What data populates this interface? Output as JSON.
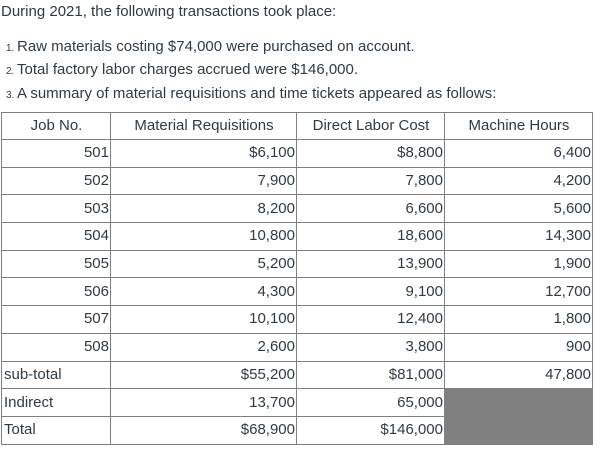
{
  "intro": {
    "text": "During 2021, the following transactions took place:"
  },
  "list": [
    {
      "number": "1.",
      "text": "Raw materials costing $74,000 were purchased on account."
    },
    {
      "number": "2.",
      "text": "Total factory labor charges accrued were $146,000."
    },
    {
      "number": "3.",
      "text": "A summary of material requisitions and time tickets appeared as follows:"
    }
  ],
  "table": {
    "headers": [
      "Job No.",
      "Material Requisitions",
      "Direct Labor Cost",
      "Machine Hours"
    ],
    "rows": [
      {
        "job": "501",
        "materials": "$6,100",
        "labor": "$8,800",
        "hours": "6,400"
      },
      {
        "job": "502",
        "materials": "7,900",
        "labor": "7,800",
        "hours": "4,200"
      },
      {
        "job": "503",
        "materials": "8,200",
        "labor": "6,600",
        "hours": "5,600"
      },
      {
        "job": "504",
        "materials": "10,800",
        "labor": "18,600",
        "hours": "14,300"
      },
      {
        "job": "505",
        "materials": "5,200",
        "labor": "13,900",
        "hours": "1,900"
      },
      {
        "job": "506",
        "materials": "4,300",
        "labor": "9,100",
        "hours": "12,700"
      },
      {
        "job": "507",
        "materials": "10,100",
        "labor": "12,400",
        "hours": "1,800"
      },
      {
        "job": "508",
        "materials": "2,600",
        "labor": "3,800",
        "hours": "900"
      }
    ],
    "subtotal": {
      "label": "sub-total",
      "materials": "$55,200",
      "labor": "$81,000",
      "hours": "47,800"
    },
    "indirect": {
      "label": "Indirect",
      "materials": "13,700",
      "labor": "65,000"
    },
    "total": {
      "label": "Total",
      "materials": "$68,900",
      "labor": "$146,000"
    },
    "blank_cell_color": "#808080",
    "border_color": "#7f7f7f"
  }
}
